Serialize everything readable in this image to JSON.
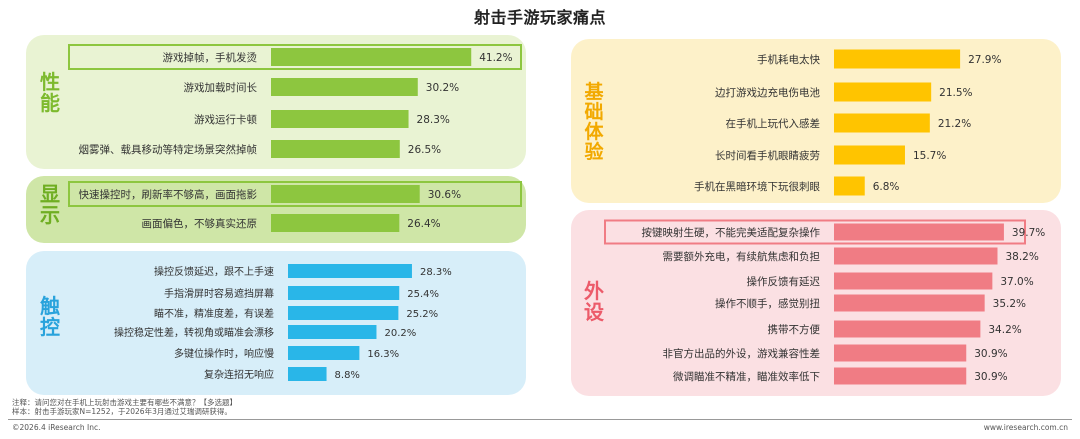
{
  "title": "射击手游玩家痛点",
  "chart_data": [
    {
      "type": "bar",
      "orientation": "horizontal",
      "group": "性能",
      "color": "#8dc63f",
      "panel_color": "#e9f3d3",
      "label_color": "#7dba2e",
      "value_suffix": "%",
      "categories": [
        "游戏掉帧，手机发烫",
        "游戏加载时间长",
        "游戏运行卡顿",
        "烟雾弹、载具移动等特定场景突然掉帧"
      ],
      "values": [
        41.2,
        30.2,
        28.3,
        26.5
      ],
      "highlight": [
        0
      ]
    },
    {
      "type": "bar",
      "orientation": "horizontal",
      "group": "显示",
      "color": "#8dc63f",
      "panel_color": "#cfe6a7",
      "label_color": "#6fae22",
      "value_suffix": "%",
      "categories": [
        "快速操控时，刷新率不够高，画面拖影",
        "画面偏色，不够真实还原"
      ],
      "values": [
        30.6,
        26.4
      ],
      "highlight": [
        0
      ]
    },
    {
      "type": "bar",
      "orientation": "horizontal",
      "group": "触控",
      "color": "#29b6e8",
      "panel_color": "#d7eef9",
      "label_color": "#29a3dc",
      "value_suffix": "%",
      "categories": [
        "操控反馈延迟，跟不上手速",
        "手指滑屏时容易遮挡屏幕",
        "瞄不准，精准度差，有误差",
        "操控稳定性差，转视角或瞄准会漂移",
        "多键位操作时，响应慢",
        "复杂连招无响应"
      ],
      "values": [
        28.3,
        25.4,
        25.2,
        20.2,
        16.3,
        8.8
      ],
      "highlight": []
    },
    {
      "type": "bar",
      "orientation": "horizontal",
      "group": "基础体验",
      "color": "#ffc400",
      "panel_color": "#fdf1c9",
      "label_color": "#f2a900",
      "value_suffix": "%",
      "categories": [
        "手机耗电太快",
        "边打游戏边充电伤电池",
        "在手机上玩代入感差",
        "长时间看手机眼睛疲劳",
        "手机在黑暗环境下玩很刺眼"
      ],
      "values": [
        27.9,
        21.5,
        21.2,
        15.7,
        6.8
      ],
      "highlight": []
    },
    {
      "type": "bar",
      "orientation": "horizontal",
      "group": "外设",
      "color": "#f07c84",
      "panel_color": "#fbe0e3",
      "label_color": "#ec5b6a",
      "value_suffix": "%",
      "categories": [
        "按键映射生硬，不能完美适配复杂操作",
        "需要额外充电，有续航焦虑和负担",
        "操作反馈有延迟",
        "操作不顺手，感觉别扭",
        "携带不方便",
        "非官方出品的外设，游戏兼容性差",
        "微调瞄准不精准，瞄准效率低下"
      ],
      "values": [
        39.7,
        38.2,
        37.0,
        35.2,
        34.2,
        30.9,
        30.9
      ],
      "highlight": [
        0
      ]
    }
  ],
  "footer": {
    "note": "注释：请问您对在手机上玩射击游戏主要有哪些不满意？【多选题】",
    "sample": "样本：射击手游玩家N=1252，于2026年3月通过艾瑞调研获得。",
    "copyright": "©2026.4 iResearch Inc.",
    "website": "www.iresearch.com.cn"
  }
}
